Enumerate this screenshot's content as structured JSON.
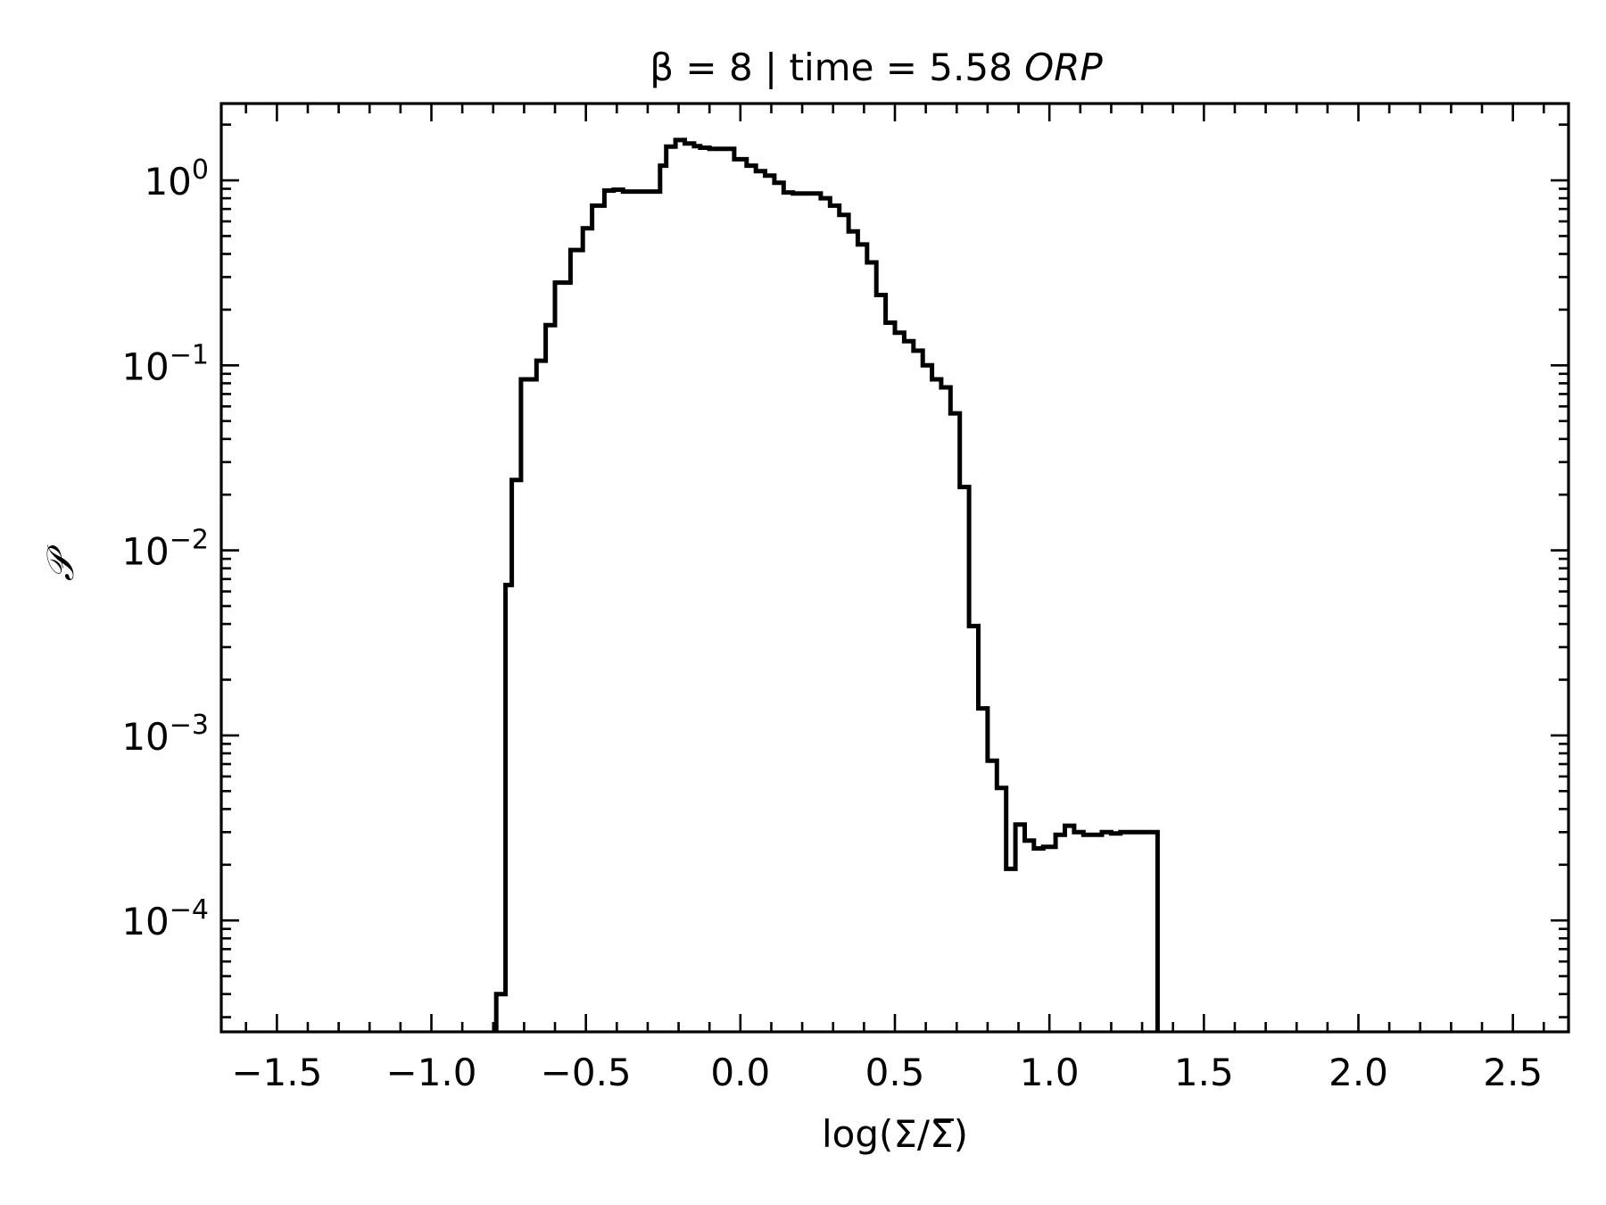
{
  "chart_data": {
    "type": "line",
    "subtype": "step-histogram",
    "title": "β = 8 | time = 5.58 ORP",
    "title_parts": {
      "prefix": "β = 8 | time = 5.58 ",
      "italic": "ORP"
    },
    "xlabel": "log(Σ/Σ̅)",
    "ylabel": "𝒫",
    "xlim": [
      -1.68,
      2.68
    ],
    "ylim": [
      2.5e-05,
      2.6
    ],
    "yscale": "log",
    "grid": false,
    "x_ticks": [
      -1.5,
      -1.0,
      -0.5,
      0.0,
      0.5,
      1.0,
      1.5,
      2.0,
      2.5
    ],
    "x_tick_labels": [
      "−1.5",
      "−1.0",
      "−0.5",
      "0.0",
      "0.5",
      "1.0",
      "1.5",
      "2.0",
      "2.5"
    ],
    "y_ticks": [
      0.0001,
      0.001,
      0.01,
      0.1,
      1
    ],
    "y_tick_labels": [
      {
        "base": "10",
        "exp": "−4"
      },
      {
        "base": "10",
        "exp": "−3"
      },
      {
        "base": "10",
        "exp": "−2"
      },
      {
        "base": "10",
        "exp": "−1"
      },
      {
        "base": "10",
        "exp": "0"
      }
    ],
    "color": "#000000",
    "series": [
      {
        "bin_edges": [
          -0.79,
          -0.76,
          -0.74,
          -0.71,
          -0.66,
          -0.63,
          -0.6,
          -0.55,
          -0.51,
          -0.48,
          -0.44,
          -0.41,
          -0.38,
          -0.26,
          -0.24,
          -0.21,
          -0.18,
          -0.15,
          -0.13,
          -0.1,
          -0.02,
          0.02,
          0.05,
          0.08,
          0.11,
          0.14,
          0.17,
          0.26,
          0.29,
          0.32,
          0.35,
          0.38,
          0.41,
          0.44,
          0.47,
          0.5,
          0.53,
          0.56,
          0.59,
          0.62,
          0.65,
          0.68,
          0.71,
          0.74,
          0.77,
          0.8,
          0.83,
          0.86,
          0.89,
          0.92,
          0.95,
          0.98,
          1.02,
          1.05,
          1.08,
          1.11,
          1.14,
          1.17,
          1.2,
          1.23,
          1.26,
          1.35
        ],
        "values": [
          4e-05,
          0.0065,
          0.024,
          0.084,
          0.106,
          0.165,
          0.28,
          0.42,
          0.55,
          0.73,
          0.88,
          0.89,
          0.87,
          1.2,
          1.52,
          1.65,
          1.58,
          1.53,
          1.5,
          1.48,
          1.3,
          1.2,
          1.12,
          1.06,
          0.97,
          0.86,
          0.85,
          0.8,
          0.73,
          0.65,
          0.53,
          0.45,
          0.36,
          0.24,
          0.17,
          0.15,
          0.135,
          0.12,
          0.1,
          0.084,
          0.076,
          0.055,
          0.022,
          0.0039,
          0.0014,
          0.00073,
          0.00052,
          0.00019,
          0.00033,
          0.00027,
          0.000245,
          0.00025,
          0.00029,
          0.000325,
          0.0003,
          0.00029,
          0.00029,
          0.0003,
          0.000295,
          0.0003,
          0.0003
        ]
      }
    ]
  }
}
